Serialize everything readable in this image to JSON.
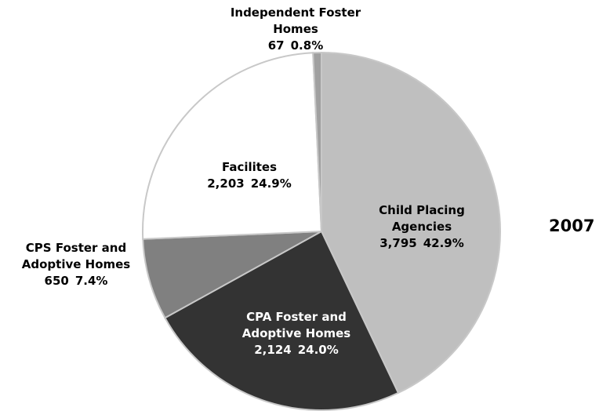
{
  "chart_data": {
    "type": "pie",
    "title": "2007",
    "categories": [
      "Child Placing Agencies",
      "CPA Foster and Adoptive Homes",
      "CPS Foster and Adoptive Homes",
      "Facilites",
      "Independent Foster Homes"
    ],
    "values": [
      3795,
      2124,
      650,
      2203,
      67
    ],
    "value_labels": [
      "3,795",
      "2,124",
      "650",
      "2,203",
      "67"
    ],
    "percents": [
      42.9,
      24.0,
      7.4,
      24.9,
      0.8
    ],
    "percent_labels": [
      "42.9%",
      "24.0%",
      "7.4%",
      "24.9%",
      "0.8%"
    ],
    "colors": [
      "#bfbfbf",
      "#333333",
      "#808080",
      "#ffffff",
      "#a0a0a0"
    ]
  }
}
